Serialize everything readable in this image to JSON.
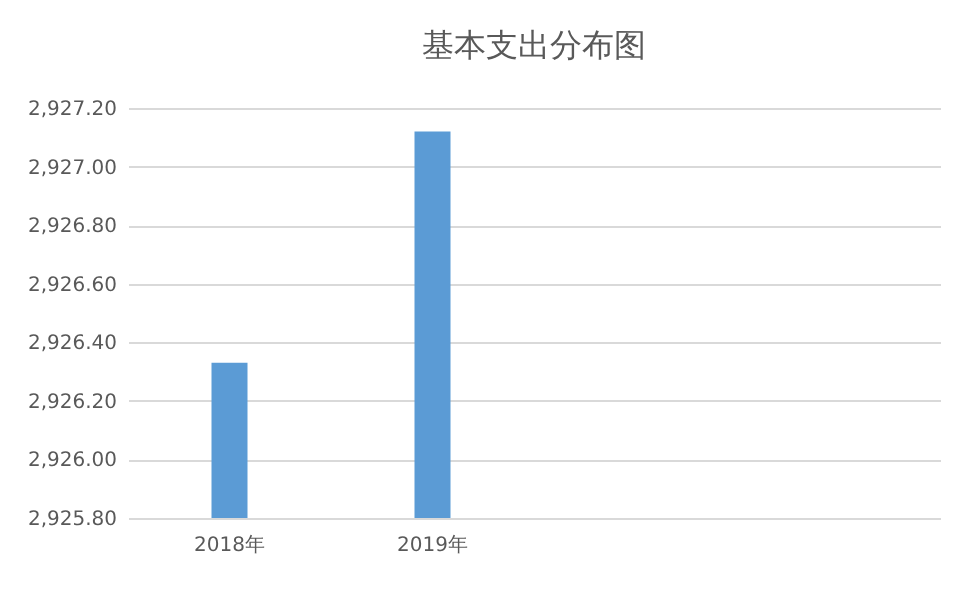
{
  "chart_data": {
    "type": "bar",
    "title": "基本支出分布图",
    "categories": [
      "2018年",
      "2019年",
      null,
      null
    ],
    "values": [
      2926.33,
      2927.12,
      null,
      null
    ],
    "color": "#5b9bd5",
    "ylim": [
      2925.8,
      2927.2
    ],
    "yticks": [
      {
        "value": 2925.8,
        "label": "2,925.80"
      },
      {
        "value": 2926.0,
        "label": "2,926.00"
      },
      {
        "value": 2926.2,
        "label": "2,926.20"
      },
      {
        "value": 2926.4,
        "label": "2,926.40"
      },
      {
        "value": 2926.6,
        "label": "2,926.60"
      },
      {
        "value": 2926.8,
        "label": "2,926.80"
      },
      {
        "value": 2927.0,
        "label": "2,927.00"
      },
      {
        "value": 2927.2,
        "label": "2,927.20"
      }
    ],
    "grid": "y"
  }
}
